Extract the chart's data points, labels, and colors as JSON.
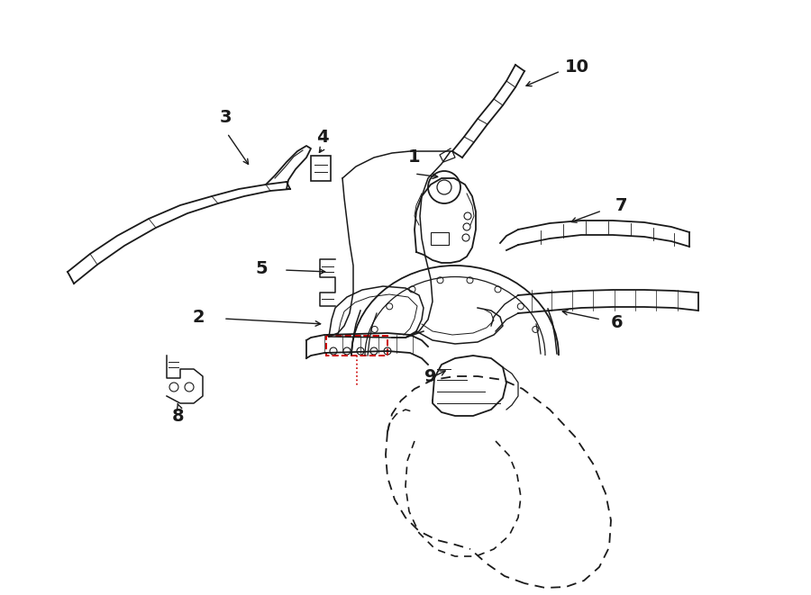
{
  "bg_color": "#ffffff",
  "line_color": "#1a1a1a",
  "red_color": "#cc0000",
  "fig_width": 9.0,
  "fig_height": 6.61,
  "dpi": 100
}
